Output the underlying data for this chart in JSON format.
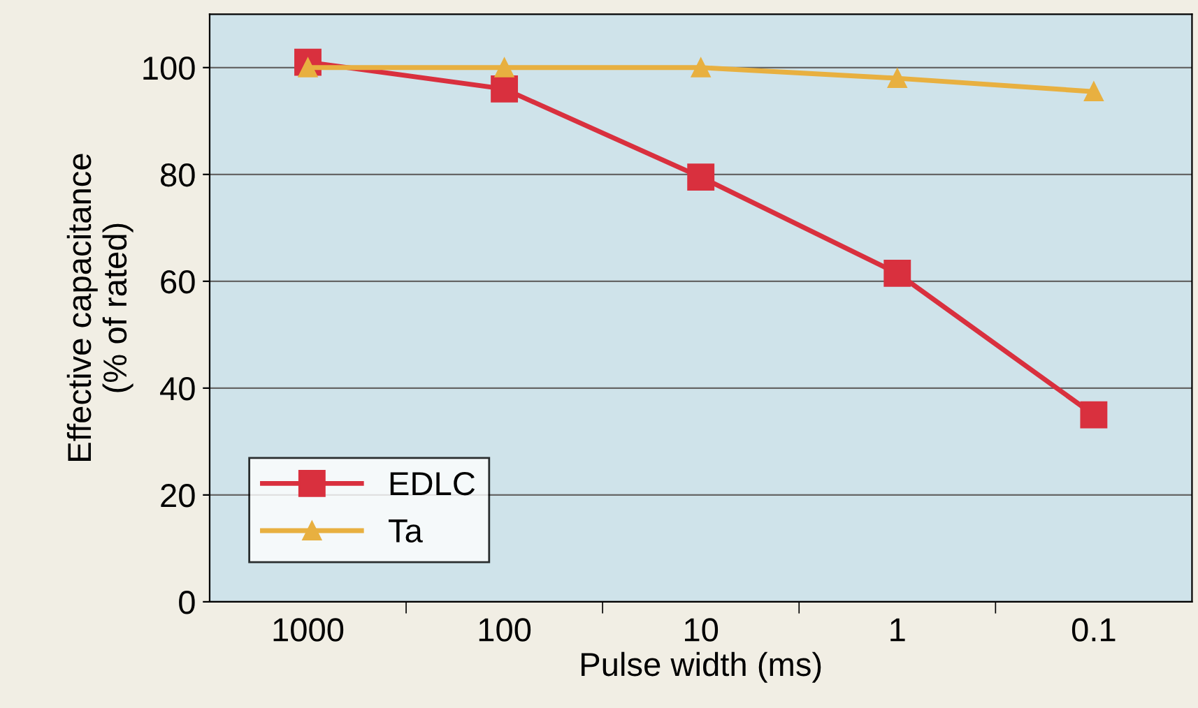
{
  "chart_data": {
    "type": "line",
    "xlabel": "Pulse width (ms)",
    "ylabel": "Effective capacitance\n(% of rated)",
    "categories": [
      "1000",
      "100",
      "10",
      "1",
      "0.1"
    ],
    "series": [
      {
        "name": "EDLC",
        "color": "#d9303e",
        "marker": "square",
        "values": [
          101,
          96,
          79.5,
          61.5,
          35
        ]
      },
      {
        "name": "Ta",
        "color": "#e8b040",
        "marker": "triangle",
        "values": [
          100,
          100,
          100,
          98,
          95.5
        ]
      }
    ],
    "ylim": [
      0,
      110
    ],
    "yticks": [
      0,
      20,
      40,
      60,
      80,
      100
    ],
    "grid": "y",
    "legend": "bottom left",
    "line_style": "solid"
  }
}
